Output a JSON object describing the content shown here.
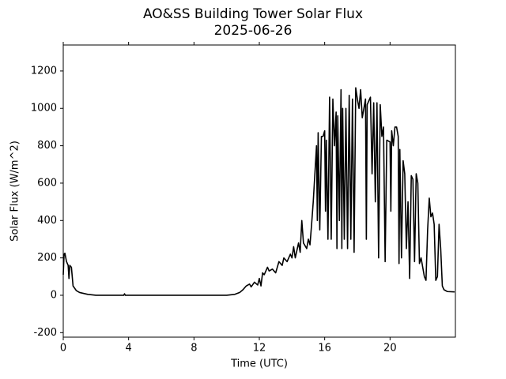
{
  "chart_data": {
    "type": "line",
    "title": "AO&SS Building Tower Solar Flux",
    "subtitle": "2025-06-26",
    "x_label": "Time (UTC)",
    "y_label": "Solar Flux (W/m^2)",
    "xlim": [
      0,
      24
    ],
    "xticks": [
      0,
      4,
      8,
      12,
      16,
      20
    ],
    "ylim": [
      -224,
      1339
    ],
    "yticks": [
      -200,
      0,
      200,
      400,
      600,
      800,
      1000,
      1200
    ],
    "series": [
      {
        "name": "Solar Flux",
        "color": "#000000",
        "x": [
          0,
          0.05,
          0.1,
          0.2,
          0.3,
          0.35,
          0.4,
          0.5,
          0.6,
          0.8,
          1.0,
          1.5,
          2,
          3.7,
          3.75,
          3.8,
          10,
          10.5,
          10.8,
          11,
          11.2,
          11.4,
          11.5,
          11.7,
          11.9,
          12,
          12.1,
          12.2,
          12.3,
          12.5,
          12.6,
          12.8,
          13,
          13.2,
          13.4,
          13.5,
          13.7,
          13.9,
          14,
          14.1,
          14.2,
          14.4,
          14.5,
          14.6,
          14.7,
          14.9,
          15,
          15.1,
          15.2,
          15.3,
          15.4,
          15.5,
          15.55,
          15.6,
          15.7,
          15.8,
          15.9,
          16,
          16.05,
          16.1,
          16.2,
          16.3,
          16.4,
          16.5,
          16.6,
          16.7,
          16.75,
          16.8,
          16.9,
          17,
          17.05,
          17.1,
          17.2,
          17.3,
          17.4,
          17.5,
          17.6,
          17.7,
          17.8,
          17.9,
          18,
          18.1,
          18.2,
          18.3,
          18.4,
          18.5,
          18.55,
          18.6,
          18.8,
          18.9,
          19,
          19.1,
          19.2,
          19.3,
          19.4,
          19.5,
          19.6,
          19.7,
          19.8,
          20,
          20.05,
          20.1,
          20.2,
          20.3,
          20.4,
          20.5,
          20.55,
          20.6,
          20.7,
          20.8,
          20.9,
          21,
          21.1,
          21.2,
          21.3,
          21.4,
          21.5,
          21.6,
          21.7,
          21.8,
          21.9,
          22,
          22.1,
          22.2,
          22.3,
          22.4,
          22.5,
          22.6,
          22.7,
          22.8,
          22.9,
          23,
          23.1,
          23.2,
          23.3,
          23.5,
          23.95
        ],
        "values": [
          110,
          220,
          225,
          180,
          160,
          90,
          160,
          150,
          50,
          25,
          15,
          5,
          0,
          0,
          8,
          0,
          0,
          5,
          15,
          30,
          50,
          60,
          45,
          70,
          55,
          90,
          50,
          120,
          110,
          150,
          130,
          140,
          120,
          180,
          160,
          200,
          180,
          220,
          200,
          260,
          200,
          280,
          230,
          400,
          280,
          250,
          300,
          270,
          380,
          500,
          650,
          800,
          400,
          870,
          350,
          850,
          850,
          880,
          450,
          830,
          300,
          1060,
          300,
          1050,
          800,
          980,
          250,
          960,
          400,
          1100,
          250,
          1000,
          300,
          1000,
          250,
          1070,
          300,
          1050,
          230,
          1110,
          1050,
          1000,
          1100,
          950,
          1000,
          1050,
          300,
          1020,
          1060,
          650,
          1030,
          500,
          1030,
          200,
          1020,
          850,
          900,
          180,
          830,
          820,
          450,
          880,
          800,
          900,
          900,
          850,
          170,
          780,
          200,
          720,
          650,
          250,
          500,
          90,
          640,
          620,
          180,
          650,
          600,
          170,
          200,
          150,
          100,
          80,
          350,
          520,
          420,
          440,
          380,
          80,
          100,
          380,
          250,
          50,
          30,
          20,
          18
        ]
      }
    ]
  }
}
